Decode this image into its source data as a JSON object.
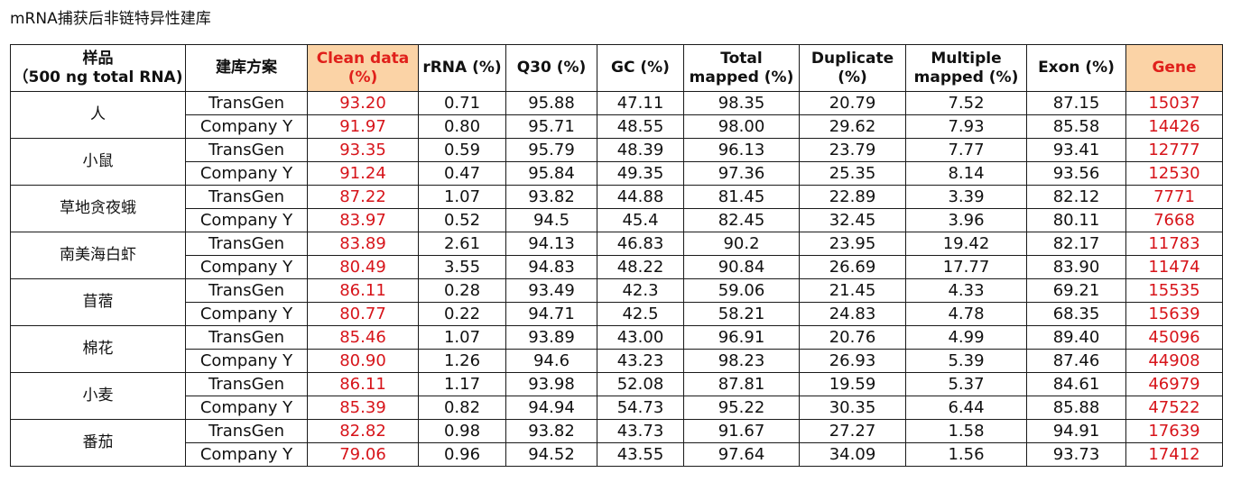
{
  "title": "mRNA捕获后非链特异性建库",
  "headers": {
    "sample": [
      "样品",
      "（500 ng total RNA)"
    ],
    "scheme": "建库方案",
    "clean": [
      "Clean data",
      "(%)"
    ],
    "rrna": "rRNA (%)",
    "q30": "Q30 (%)",
    "gc": "GC (%)",
    "total": [
      "Total",
      "mapped (%)"
    ],
    "dup": [
      "Duplicate",
      "(%)"
    ],
    "multi": [
      "Multiple",
      "mapped (%)"
    ],
    "exon": "Exon (%)",
    "gene": "Gene"
  },
  "colors": {
    "highlight_bg": "#fbd3a6",
    "highlight_text": "#e0201b",
    "red_values": "#d7141a"
  },
  "groups": [
    {
      "species": "人",
      "rows": [
        {
          "scheme": "TransGen",
          "clean": "93.20",
          "rrna": "0.71",
          "q30": "95.88",
          "gc": "47.11",
          "total": "98.35",
          "dup": "20.79",
          "multi": "7.52",
          "exon": "87.15",
          "gene": "15037"
        },
        {
          "scheme": "Company Y",
          "clean": "91.97",
          "rrna": "0.80",
          "q30": "95.71",
          "gc": "48.55",
          "total": "98.00",
          "dup": "29.62",
          "multi": "7.93",
          "exon": "85.58",
          "gene": "14426"
        }
      ]
    },
    {
      "species": "小鼠",
      "rows": [
        {
          "scheme": "TransGen",
          "clean": "93.35",
          "rrna": "0.59",
          "q30": "95.79",
          "gc": "48.39",
          "total": "96.13",
          "dup": "23.79",
          "multi": "7.77",
          "exon": "93.41",
          "gene": "12777"
        },
        {
          "scheme": "Company Y",
          "clean": "91.24",
          "rrna": "0.47",
          "q30": "95.84",
          "gc": "49.35",
          "total": "97.36",
          "dup": "25.35",
          "multi": "8.14",
          "exon": "93.56",
          "gene": "12530"
        }
      ]
    },
    {
      "species": "草地贪夜蛾",
      "rows": [
        {
          "scheme": "TransGen",
          "clean": "87.22",
          "rrna": "1.07",
          "q30": "93.82",
          "gc": "44.88",
          "total": "81.45",
          "dup": "22.89",
          "multi": "3.39",
          "exon": "82.12",
          "gene": "7771"
        },
        {
          "scheme": "Company Y",
          "clean": "83.97",
          "rrna": "0.52",
          "q30": "94.5",
          "gc": "45.4",
          "total": "82.45",
          "dup": "32.45",
          "multi": "3.96",
          "exon": "80.11",
          "gene": "7668"
        }
      ]
    },
    {
      "species": "南美海白虾",
      "rows": [
        {
          "scheme": "TransGen",
          "clean": "83.89",
          "rrna": "2.61",
          "q30": "94.13",
          "gc": "46.83",
          "total": "90.2",
          "dup": "23.95",
          "multi": "19.42",
          "exon": "82.17",
          "gene": "11783"
        },
        {
          "scheme": "Company Y",
          "clean": "80.49",
          "rrna": "3.55",
          "q30": "94.83",
          "gc": "48.22",
          "total": "90.84",
          "dup": "26.69",
          "multi": "17.77",
          "exon": "83.90",
          "gene": "11474"
        }
      ]
    },
    {
      "species": "苜蓿",
      "rows": [
        {
          "scheme": "TransGen",
          "clean": "86.11",
          "rrna": "0.28",
          "q30": "93.49",
          "gc": "42.3",
          "total": "59.06",
          "dup": "21.45",
          "multi": "4.33",
          "exon": "69.21",
          "gene": "15535"
        },
        {
          "scheme": "Company Y",
          "clean": "80.77",
          "rrna": "0.22",
          "q30": "94.71",
          "gc": "42.5",
          "total": "58.21",
          "dup": "24.83",
          "multi": "4.78",
          "exon": "68.35",
          "gene": "15639"
        }
      ]
    },
    {
      "species": "棉花",
      "rows": [
        {
          "scheme": "TransGen",
          "clean": "85.46",
          "rrna": "1.07",
          "q30": "93.89",
          "gc": "43.00",
          "total": "96.91",
          "dup": "20.76",
          "multi": "4.99",
          "exon": "89.40",
          "gene": "45096"
        },
        {
          "scheme": "Company Y",
          "clean": "80.90",
          "rrna": "1.26",
          "q30": "94.6",
          "gc": "43.23",
          "total": "98.23",
          "dup": "26.93",
          "multi": "5.39",
          "exon": "87.46",
          "gene": "44908"
        }
      ]
    },
    {
      "species": "小麦",
      "rows": [
        {
          "scheme": "TransGen",
          "clean": "86.11",
          "rrna": "1.17",
          "q30": "93.98",
          "gc": "52.08",
          "total": "87.81",
          "dup": "19.59",
          "multi": "5.37",
          "exon": "84.61",
          "gene": "46979"
        },
        {
          "scheme": "Company Y",
          "clean": "85.39",
          "rrna": "0.82",
          "q30": "94.94",
          "gc": "54.73",
          "total": "95.22",
          "dup": "30.35",
          "multi": "6.44",
          "exon": "85.88",
          "gene": "47522"
        }
      ]
    },
    {
      "species": "番茄",
      "rows": [
        {
          "scheme": "TransGen",
          "clean": "82.82",
          "rrna": "0.98",
          "q30": "93.82",
          "gc": "43.73",
          "total": "91.67",
          "dup": "27.27",
          "multi": "1.58",
          "exon": "94.91",
          "gene": "17639"
        },
        {
          "scheme": "Company Y",
          "clean": "79.06",
          "rrna": "0.96",
          "q30": "94.52",
          "gc": "43.55",
          "total": "97.64",
          "dup": "34.09",
          "multi": "1.56",
          "exon": "93.73",
          "gene": "17412"
        }
      ]
    }
  ]
}
